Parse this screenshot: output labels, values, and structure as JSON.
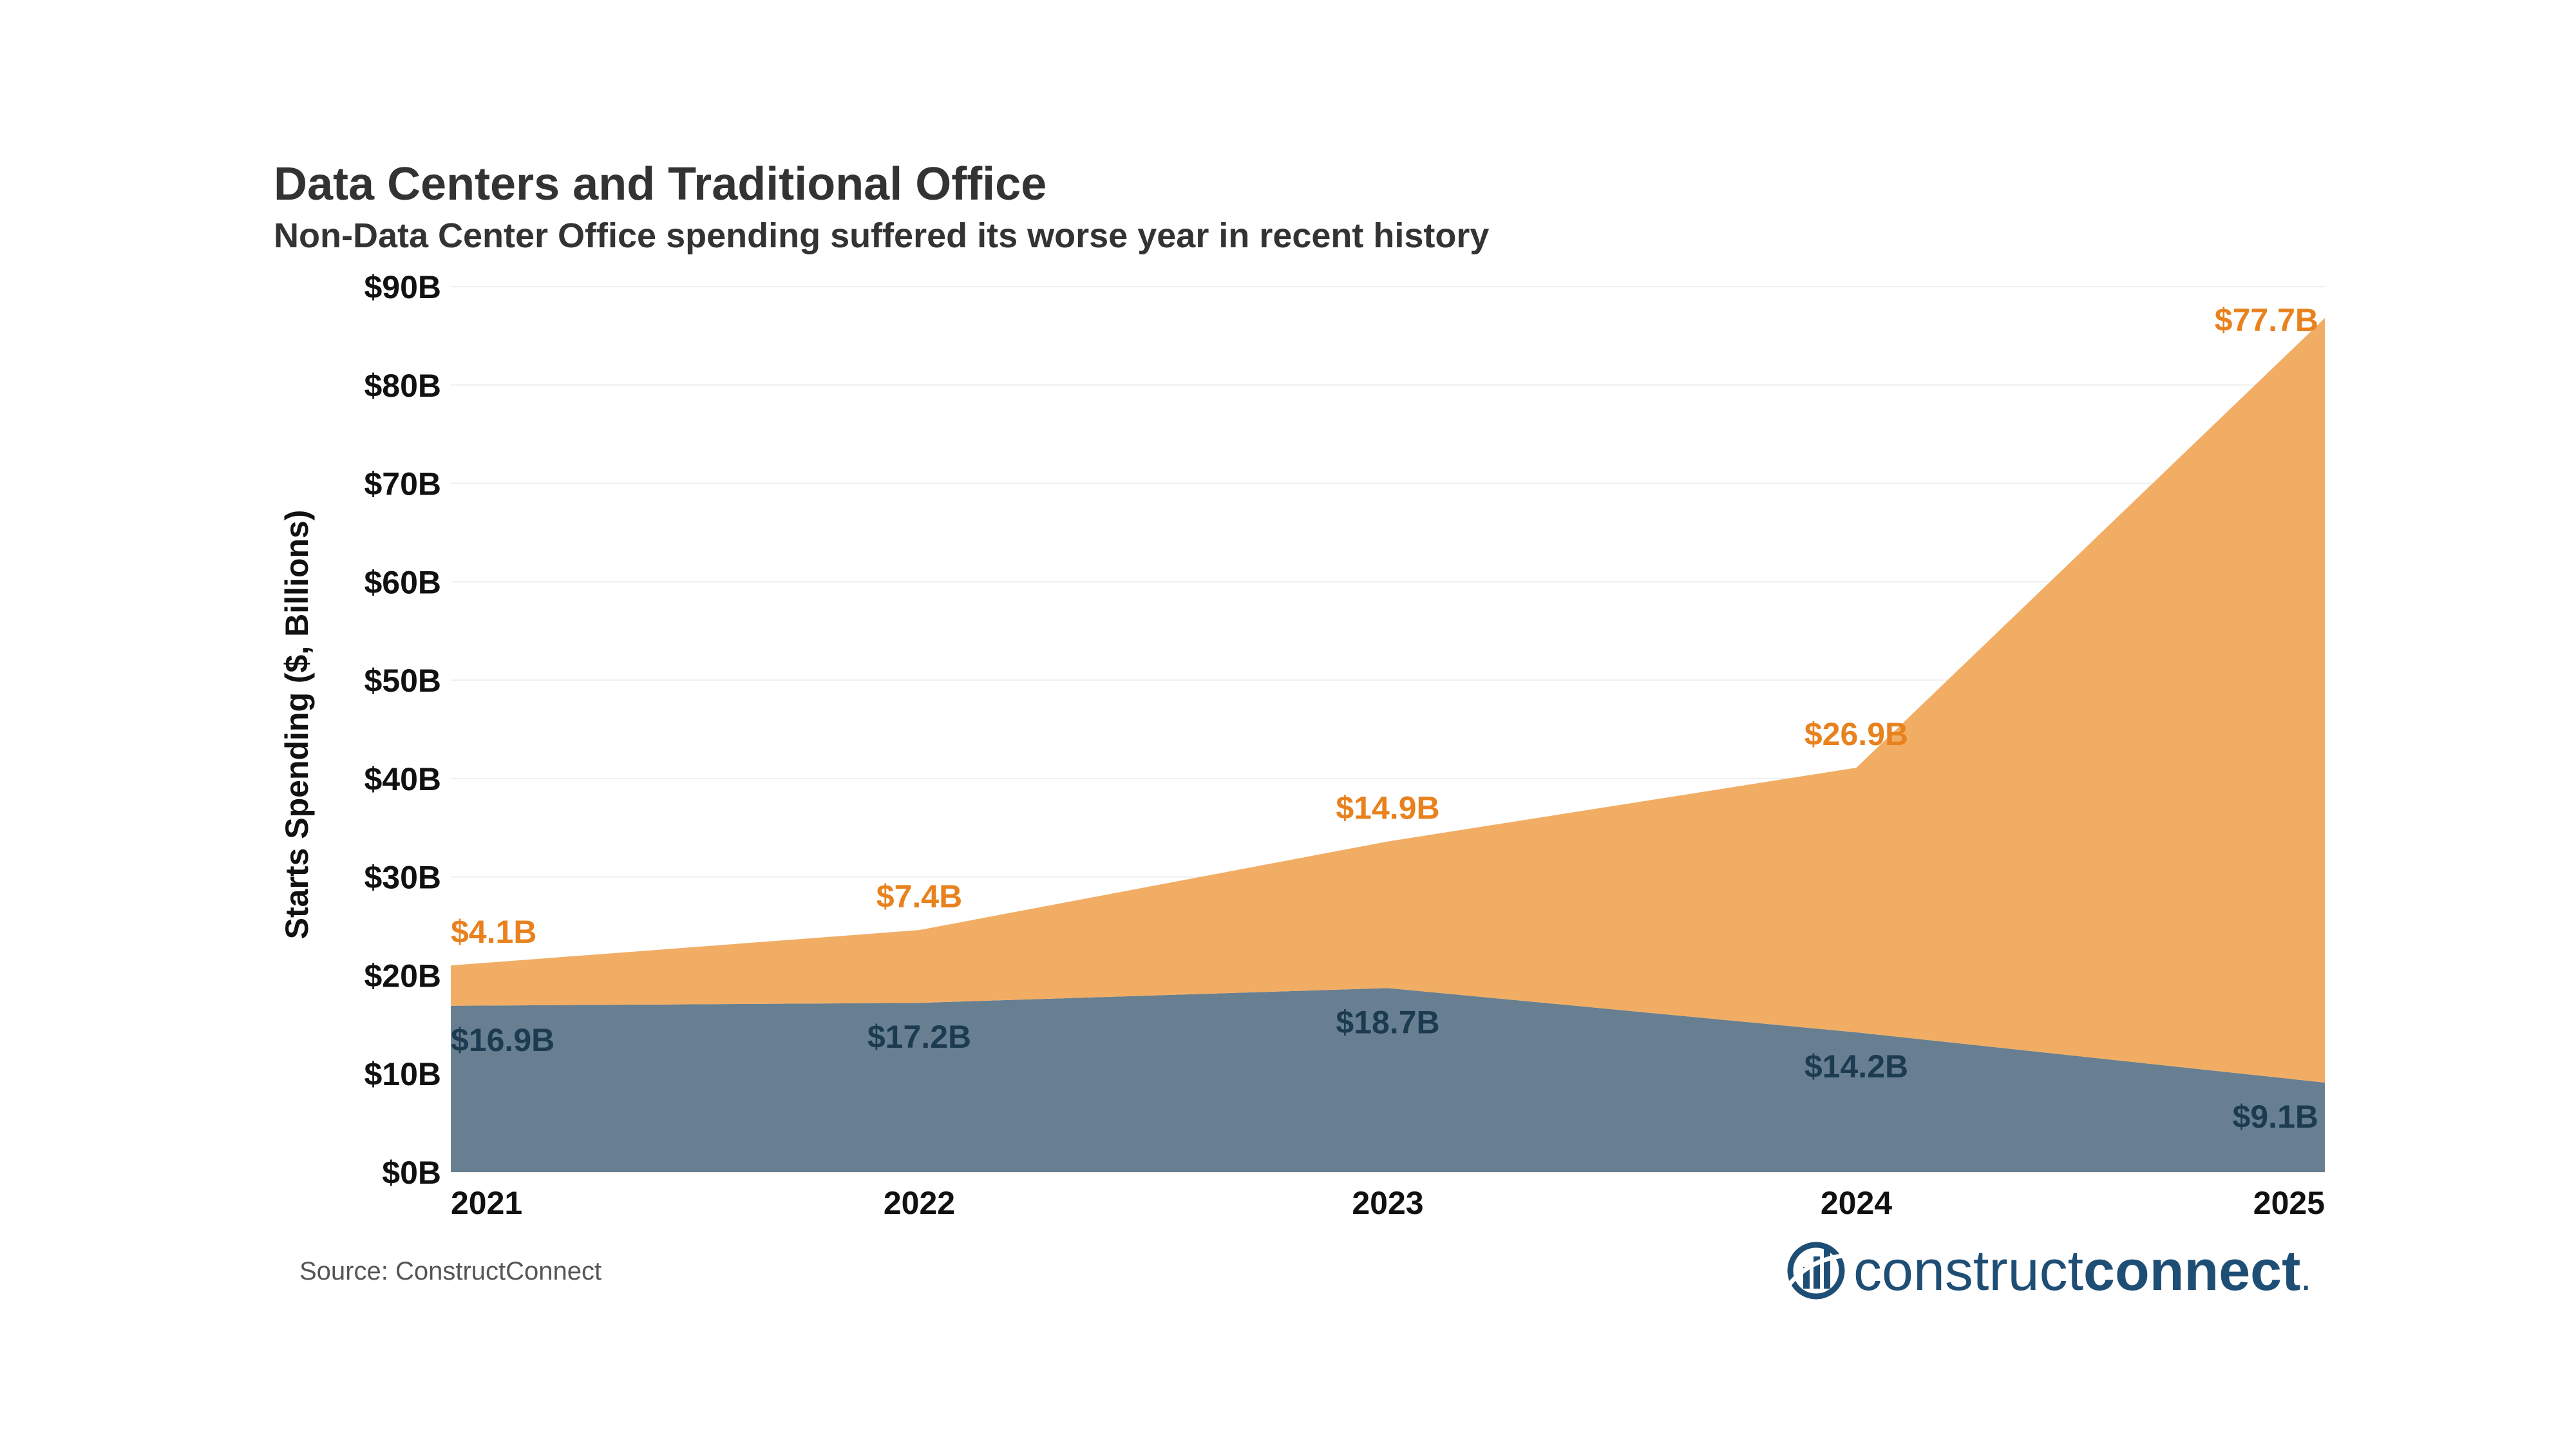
{
  "title": "Data Centers and Traditional Office",
  "subtitle": "Non-Data Center Office spending suffered its worse year in recent history",
  "source": "Source: ConstructConnect",
  "logo": {
    "text_light": "construct",
    "text_bold": "connect",
    "dot": "."
  },
  "colors": {
    "data_center": "#f2ad65",
    "office": "#677f90",
    "data_center_label": "#e8821e",
    "office_label": "#1c3b50",
    "logo": "#1f4e75"
  },
  "chart_data": {
    "type": "area",
    "stacked": true,
    "categories": [
      "2021",
      "2022",
      "2023",
      "2024",
      "2025"
    ],
    "ylabel": "Starts Spending ($, Billions)",
    "ylim": [
      0,
      90
    ],
    "yticks": [
      0,
      10,
      20,
      30,
      40,
      50,
      60,
      70,
      80,
      90
    ],
    "ytick_labels": [
      "$0B",
      "$10B",
      "$20B",
      "$30B",
      "$40B",
      "$50B",
      "$60B",
      "$70B",
      "$80B",
      "$90B"
    ],
    "grid": true,
    "series": [
      {
        "key": "office",
        "values": [
          16.9,
          17.2,
          18.7,
          14.2,
          9.1
        ],
        "labels": [
          "$16.9B",
          "$17.2B",
          "$18.7B",
          "$14.2B",
          "$9.1B"
        ]
      },
      {
        "key": "data_center",
        "values": [
          4.1,
          7.4,
          14.9,
          26.9,
          77.7
        ],
        "labels": [
          "$4.1B",
          "$7.4B",
          "$14.9B",
          "$26.9B",
          "$77.7B"
        ]
      }
    ]
  }
}
